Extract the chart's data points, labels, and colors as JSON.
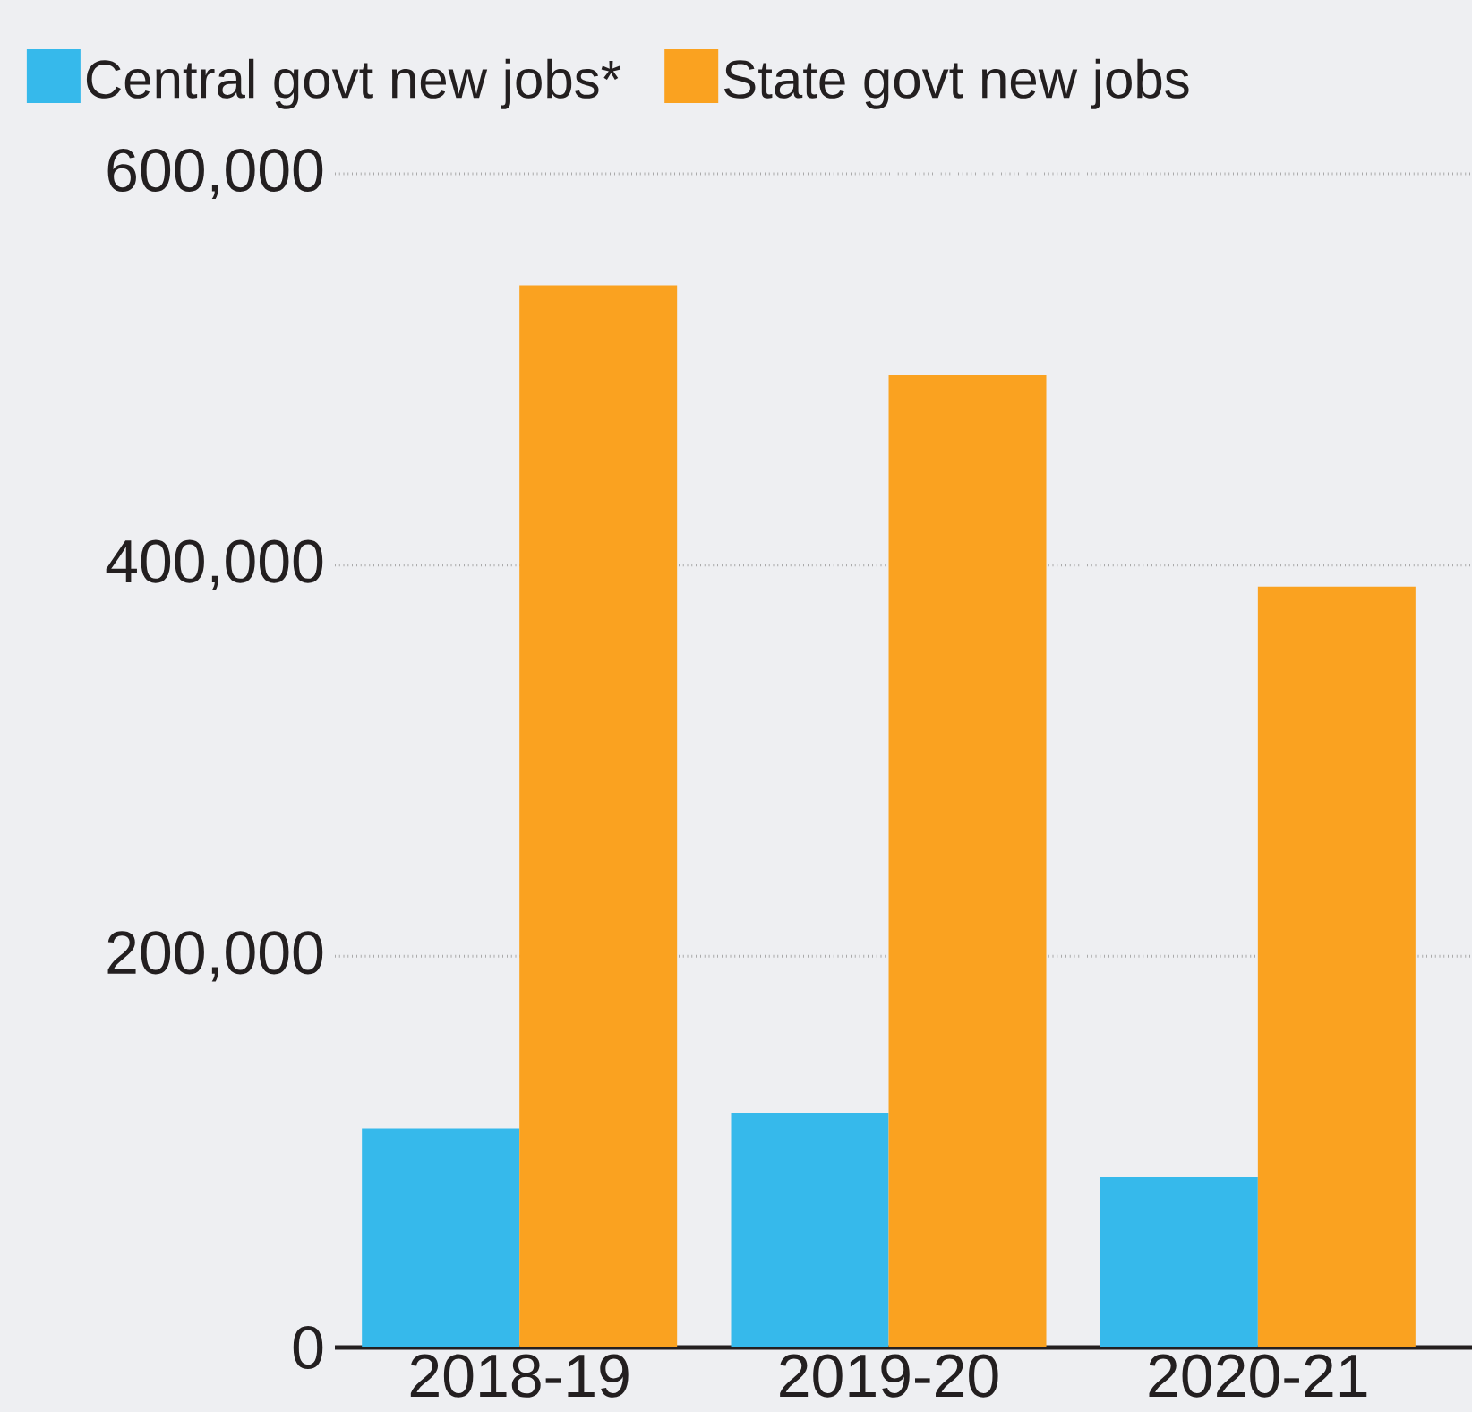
{
  "chart_data": {
    "type": "bar",
    "categories": [
      "2018-19",
      "2019-20",
      "2020-21"
    ],
    "series": [
      {
        "name": "Central govt new jobs*",
        "color": "#36b9eb",
        "values": [
          112000,
          120000,
          87000
        ]
      },
      {
        "name": "State govt new jobs",
        "color": "#faa220",
        "values": [
          543000,
          497000,
          389000
        ]
      }
    ],
    "ylim": [
      0,
      600000
    ],
    "yticks": [
      0,
      {
        "value": 200000,
        "label": "200,000"
      },
      {
        "value": 400000,
        "label": "400,000"
      },
      {
        "value": 600000,
        "label": "600,000"
      }
    ],
    "grid": "y",
    "legend": "top"
  }
}
